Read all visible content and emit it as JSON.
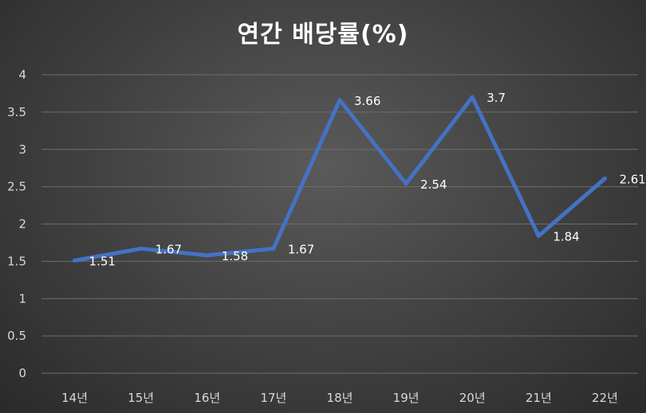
{
  "chart_data": {
    "type": "line",
    "title": "연간 배당률(%)",
    "categories": [
      "14년",
      "15년",
      "16년",
      "17년",
      "18년",
      "19년",
      "20년",
      "21년",
      "22년"
    ],
    "series": [
      {
        "values": [
          1.51,
          1.67,
          1.58,
          1.67,
          3.66,
          2.54,
          3.7,
          1.84,
          2.61
        ],
        "color": "#4472c4"
      }
    ],
    "data_labels": [
      "1.51",
      "1.67",
      "1.58",
      "1.67",
      "3.66",
      "2.54",
      "3.7",
      "1.84",
      "2.61"
    ],
    "y_ticks": [
      "0",
      "0.5",
      "1",
      "1.5",
      "2",
      "2.5",
      "3",
      "3.5",
      "4"
    ],
    "ylim": [
      0,
      4
    ],
    "grid": true,
    "legend": "none",
    "colors": {
      "line": "#4472c4",
      "text": "#ffffff",
      "tick": "#d9d9d9",
      "grid": "#6e6e6e"
    }
  }
}
